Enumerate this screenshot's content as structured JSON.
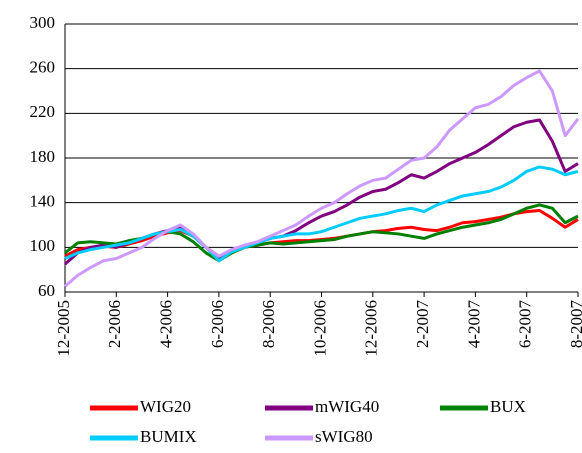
{
  "chart_data": {
    "type": "line",
    "categories": [
      "12-2005",
      null,
      null,
      null,
      "2-2006",
      null,
      null,
      null,
      "4-2006",
      null,
      null,
      null,
      "6-2006",
      null,
      null,
      null,
      "8-2006",
      null,
      null,
      null,
      "10-2006",
      null,
      null,
      null,
      "12-2006",
      null,
      null,
      null,
      "2-2007",
      null,
      null,
      null,
      "4-2007",
      null,
      null,
      null,
      "6-2007",
      null,
      null,
      null,
      "8-2007"
    ],
    "series": [
      {
        "name": "WIG20",
        "color": "#ff0000",
        "values": [
          92,
          98,
          100,
          101,
          100,
          103,
          106,
          110,
          113,
          115,
          110,
          100,
          92,
          95,
          100,
          102,
          104,
          105,
          106,
          106,
          107,
          108,
          110,
          112,
          114,
          115,
          117,
          118,
          116,
          115,
          118,
          122,
          123,
          125,
          127,
          130,
          132,
          133,
          126,
          118,
          125
        ]
      },
      {
        "name": "mWIG40",
        "color": "#800080",
        "values": [
          85,
          95,
          100,
          102,
          100,
          104,
          108,
          112,
          115,
          117,
          110,
          100,
          90,
          96,
          100,
          104,
          108,
          110,
          115,
          122,
          128,
          132,
          138,
          145,
          150,
          152,
          158,
          165,
          162,
          168,
          175,
          180,
          185,
          192,
          200,
          208,
          212,
          214,
          195,
          168,
          175
        ]
      },
      {
        "name": "BUX",
        "color": "#008000",
        "values": [
          95,
          104,
          105,
          104,
          103,
          106,
          108,
          112,
          114,
          112,
          105,
          95,
          88,
          95,
          100,
          102,
          104,
          103,
          104,
          105,
          106,
          107,
          110,
          112,
          114,
          113,
          112,
          110,
          108,
          112,
          115,
          118,
          120,
          122,
          125,
          130,
          135,
          138,
          135,
          122,
          128
        ]
      },
      {
        "name": "BUMIX",
        "color": "#00ccff",
        "values": [
          90,
          95,
          98,
          100,
          102,
          104,
          108,
          112,
          114,
          116,
          110,
          100,
          88,
          96,
          100,
          104,
          108,
          110,
          112,
          112,
          114,
          118,
          122,
          126,
          128,
          130,
          133,
          135,
          132,
          138,
          142,
          146,
          148,
          150,
          154,
          160,
          168,
          172,
          170,
          165,
          168
        ]
      },
      {
        "name": "sWIG80",
        "color": "#cc99ff",
        "values": [
          65,
          75,
          82,
          88,
          90,
          95,
          100,
          108,
          115,
          120,
          112,
          100,
          92,
          98,
          102,
          105,
          110,
          115,
          120,
          128,
          135,
          140,
          148,
          155,
          160,
          162,
          170,
          178,
          180,
          190,
          205,
          215,
          225,
          228,
          235,
          245,
          252,
          258,
          240,
          200,
          215
        ]
      }
    ],
    "ylim": [
      60,
      300
    ],
    "yticks": [
      60,
      100,
      140,
      180,
      220,
      260,
      300
    ],
    "grid": true
  }
}
